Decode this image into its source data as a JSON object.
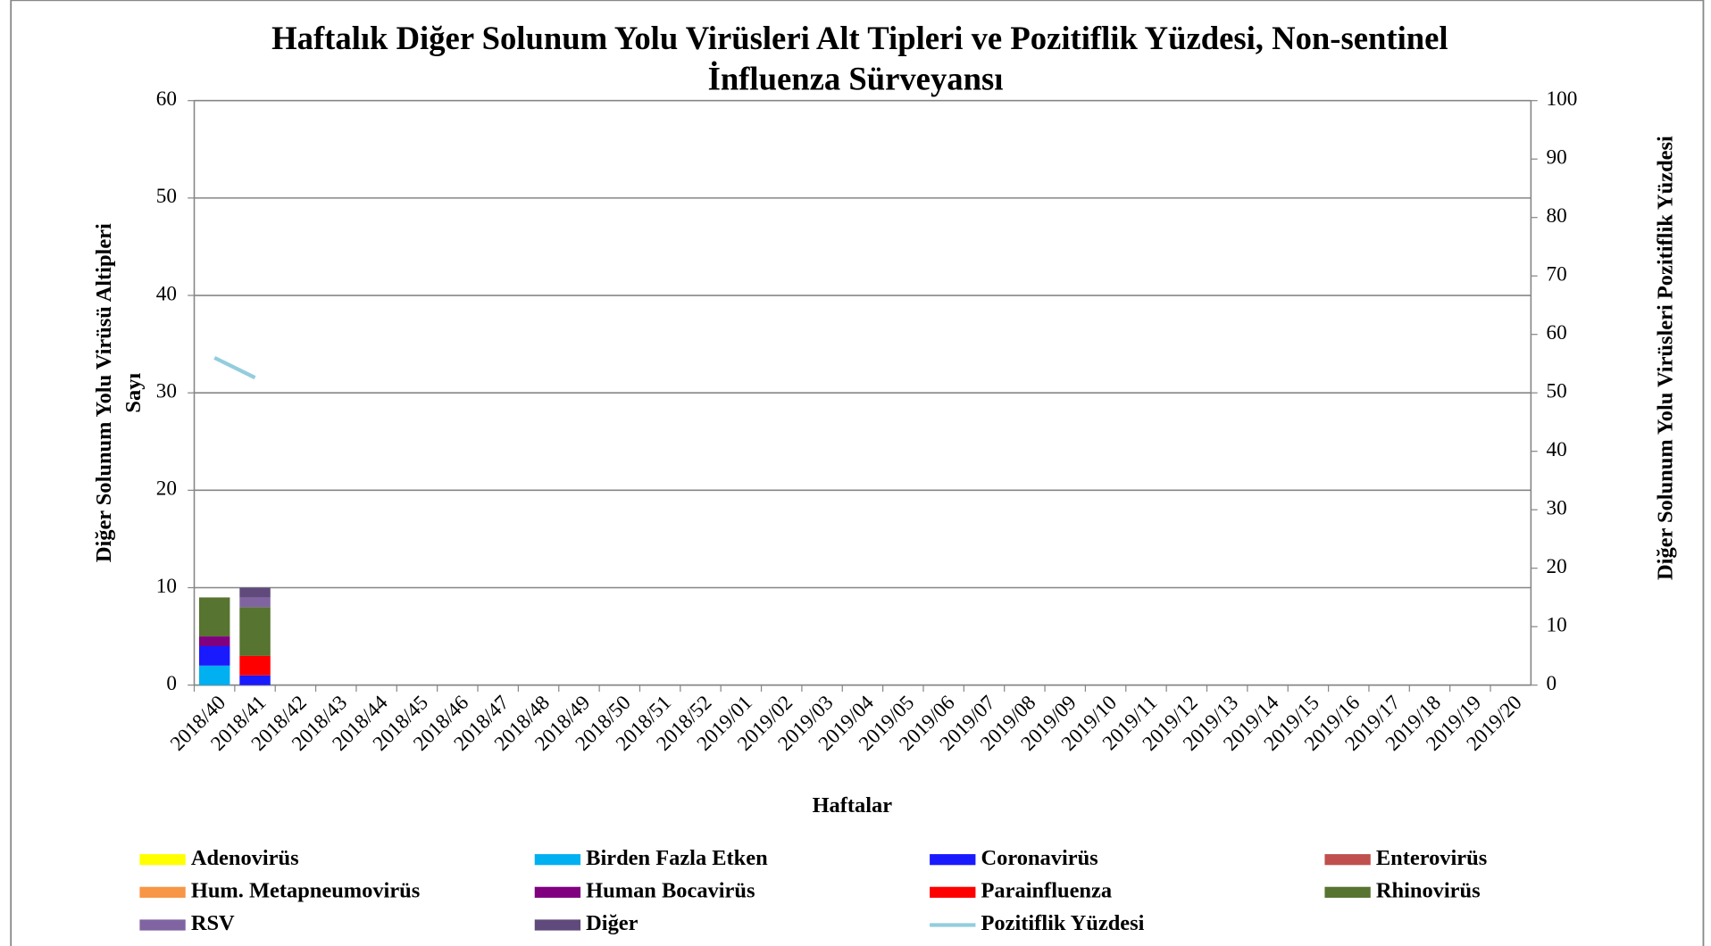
{
  "chart_data": {
    "type": "bar",
    "stacked": true,
    "title": [
      "Haftalık Diğer Solunum Yolu Virüsleri Alt Tipleri ve Pozitiflik Yüzdesi, Non-sentinel",
      "İnfluenza Sürveyansı"
    ],
    "x_label": "Haftalar",
    "y_label": [
      "Diğer Solunum Yolu Virüsü Altipleri",
      "Sayı"
    ],
    "y2_label": "Diğer Solunum Yolu Virüsleri Pozitiflik Yüzdesi",
    "categories": [
      "2018/40",
      "2018/41",
      "2018/42",
      "2018/43",
      "2018/44",
      "2018/45",
      "2018/46",
      "2018/47",
      "2018/48",
      "2018/49",
      "2018/50",
      "2018/51",
      "2018/52",
      "2019/01",
      "2019/02",
      "2019/03",
      "2019/04",
      "2019/05",
      "2019/06",
      "2019/07",
      "2019/08",
      "2019/09",
      "2019/10",
      "2019/11",
      "2019/12",
      "2019/13",
      "2019/14",
      "2019/15",
      "2019/16",
      "2019/17",
      "2019/18",
      "2019/19",
      "2019/20"
    ],
    "ylim": [
      0,
      60
    ],
    "yticks": [
      0,
      10,
      20,
      30,
      40,
      50,
      60
    ],
    "y2lim": [
      0,
      100
    ],
    "y2ticks": [
      0,
      10,
      20,
      30,
      40,
      50,
      60,
      70,
      80,
      90,
      100
    ],
    "grid": true,
    "legend": "bottom",
    "series": [
      {
        "name": "Adenovirüs",
        "color": "#ffff00",
        "values": [
          0,
          0,
          null,
          null,
          null,
          null,
          null,
          null,
          null,
          null,
          null,
          null,
          null,
          null,
          null,
          null,
          null,
          null,
          null,
          null,
          null,
          null,
          null,
          null,
          null,
          null,
          null,
          null,
          null,
          null,
          null,
          null,
          null
        ]
      },
      {
        "name": "Birden Fazla Etken",
        "color": "#00b0f0",
        "values": [
          2,
          0,
          null,
          null,
          null,
          null,
          null,
          null,
          null,
          null,
          null,
          null,
          null,
          null,
          null,
          null,
          null,
          null,
          null,
          null,
          null,
          null,
          null,
          null,
          null,
          null,
          null,
          null,
          null,
          null,
          null,
          null,
          null
        ]
      },
      {
        "name": "Coronavirüs",
        "color": "#1a1aff",
        "values": [
          2,
          1,
          null,
          null,
          null,
          null,
          null,
          null,
          null,
          null,
          null,
          null,
          null,
          null,
          null,
          null,
          null,
          null,
          null,
          null,
          null,
          null,
          null,
          null,
          null,
          null,
          null,
          null,
          null,
          null,
          null,
          null,
          null
        ]
      },
      {
        "name": "Enterovirüs",
        "color": "#c0504d",
        "values": [
          0,
          0,
          null,
          null,
          null,
          null,
          null,
          null,
          null,
          null,
          null,
          null,
          null,
          null,
          null,
          null,
          null,
          null,
          null,
          null,
          null,
          null,
          null,
          null,
          null,
          null,
          null,
          null,
          null,
          null,
          null,
          null,
          null
        ]
      },
      {
        "name": "Hum. Metapneumovirüs",
        "color": "#f79646",
        "values": [
          0,
          0,
          null,
          null,
          null,
          null,
          null,
          null,
          null,
          null,
          null,
          null,
          null,
          null,
          null,
          null,
          null,
          null,
          null,
          null,
          null,
          null,
          null,
          null,
          null,
          null,
          null,
          null,
          null,
          null,
          null,
          null,
          null
        ]
      },
      {
        "name": "Human Bocavirüs",
        "color": "#800080",
        "values": [
          1,
          0,
          null,
          null,
          null,
          null,
          null,
          null,
          null,
          null,
          null,
          null,
          null,
          null,
          null,
          null,
          null,
          null,
          null,
          null,
          null,
          null,
          null,
          null,
          null,
          null,
          null,
          null,
          null,
          null,
          null,
          null,
          null
        ]
      },
      {
        "name": "Parainfluenza",
        "color": "#ff0000",
        "values": [
          0,
          2,
          null,
          null,
          null,
          null,
          null,
          null,
          null,
          null,
          null,
          null,
          null,
          null,
          null,
          null,
          null,
          null,
          null,
          null,
          null,
          null,
          null,
          null,
          null,
          null,
          null,
          null,
          null,
          null,
          null,
          null,
          null
        ]
      },
      {
        "name": "Rhinovirüs",
        "color": "#577430",
        "values": [
          4,
          5,
          null,
          null,
          null,
          null,
          null,
          null,
          null,
          null,
          null,
          null,
          null,
          null,
          null,
          null,
          null,
          null,
          null,
          null,
          null,
          null,
          null,
          null,
          null,
          null,
          null,
          null,
          null,
          null,
          null,
          null,
          null
        ]
      },
      {
        "name": "RSV",
        "color": "#8064a2",
        "values": [
          0,
          1,
          null,
          null,
          null,
          null,
          null,
          null,
          null,
          null,
          null,
          null,
          null,
          null,
          null,
          null,
          null,
          null,
          null,
          null,
          null,
          null,
          null,
          null,
          null,
          null,
          null,
          null,
          null,
          null,
          null,
          null,
          null
        ]
      },
      {
        "name": "Diğer",
        "color": "#604a7b",
        "values": [
          0,
          1,
          null,
          null,
          null,
          null,
          null,
          null,
          null,
          null,
          null,
          null,
          null,
          null,
          null,
          null,
          null,
          null,
          null,
          null,
          null,
          null,
          null,
          null,
          null,
          null,
          null,
          null,
          null,
          null,
          null,
          null,
          null
        ]
      },
      {
        "name": "Pozitiflik Yüzdesi",
        "color": "#93cddd",
        "type": "line",
        "axis": "y2",
        "values": [
          56,
          52.6,
          null,
          null,
          null,
          null,
          null,
          null,
          null,
          null,
          null,
          null,
          null,
          null,
          null,
          null,
          null,
          null,
          null,
          null,
          null,
          null,
          null,
          null,
          null,
          null,
          null,
          null,
          null,
          null,
          null,
          null,
          null
        ]
      }
    ]
  }
}
